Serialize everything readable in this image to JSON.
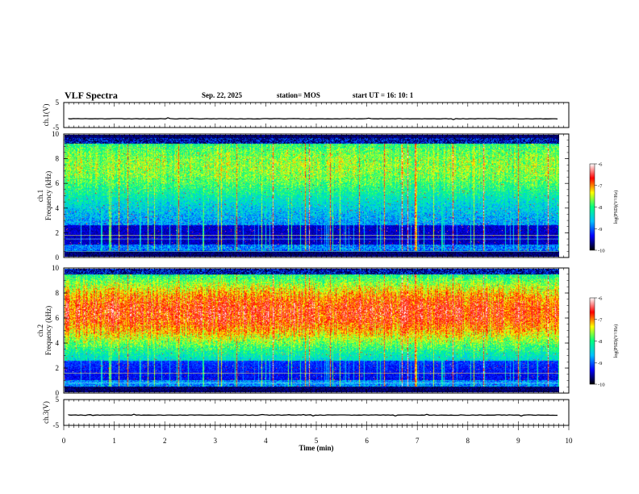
{
  "header": {
    "title": "VLF Spectra",
    "date": "Sep. 22, 2025",
    "station": "station= MOS",
    "start": "start  UT  =    16: 10: 1"
  },
  "chart_data": {
    "type": "heatmap",
    "title": "VLF Spectra",
    "xlabel": "Time  (min)",
    "xlim": [
      0,
      10
    ],
    "x_ticks": [
      "0",
      "1",
      "2",
      "3",
      "4",
      "5",
      "6",
      "7",
      "8",
      "9",
      "10"
    ],
    "data_end_min": 9.8,
    "panels": [
      {
        "id": "ch1-voltage",
        "kind": "line",
        "ylabel": "ch.1(V)",
        "ylim": [
          -5,
          5
        ],
        "y_ticks": [
          "5",
          "-5"
        ],
        "level": -1.5
      },
      {
        "id": "ch1-spectrogram",
        "kind": "spectrogram",
        "ylabel_top": "ch.1",
        "ylabel": "Frequency (kHz)",
        "ylim": [
          0,
          10
        ],
        "y_ticks": [
          "0",
          "2",
          "4",
          "6",
          "8",
          "10"
        ],
        "band_low_khz": 0.5,
        "band_high_khz": 9.3,
        "peak_khz": 7.5,
        "colorbar": {
          "label": "log(PSD)(V²/Hz)",
          "range": [
            -10,
            -6
          ],
          "ticks": [
            "-6",
            "-7",
            "-8",
            "-9",
            "-10"
          ]
        }
      },
      {
        "id": "ch2-spectrogram",
        "kind": "spectrogram",
        "ylabel_top": "ch.2",
        "ylabel": "Frequency (kHz)",
        "ylim": [
          0,
          10
        ],
        "y_ticks": [
          "0",
          "2",
          "4",
          "6",
          "8",
          "10"
        ],
        "band_low_khz": 0.5,
        "band_high_khz": 9.6,
        "peak_khz": 6.5,
        "colorbar": {
          "label": "log(PSD)(V²/Hz)",
          "range": [
            -10,
            -6
          ],
          "ticks": [
            "-6",
            "-7",
            "-8",
            "-9",
            "-10"
          ]
        }
      },
      {
        "id": "ch3-voltage",
        "kind": "line",
        "ylabel": "ch.3(V)",
        "ylim": [
          -5,
          5
        ],
        "y_ticks": [
          "5",
          "-5"
        ],
        "level": -1.0
      }
    ],
    "colors": {
      "colormap": [
        "#000000",
        "#0000ff",
        "#00c0ff",
        "#00ff80",
        "#ffff00",
        "#ff0000",
        "#ffffff"
      ],
      "axis": "#000000"
    }
  }
}
